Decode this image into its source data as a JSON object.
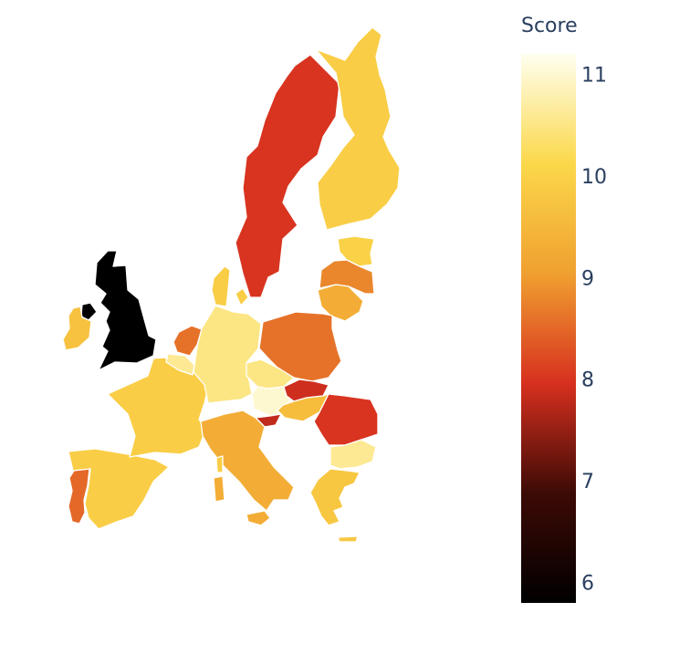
{
  "colorbar": {
    "title": "Score",
    "ticks": [
      6,
      7,
      8,
      9,
      10,
      11
    ],
    "range": [
      5.8,
      11.2
    ]
  },
  "colorscale": [
    [
      0.0,
      "#000000"
    ],
    [
      0.2,
      "#3d0a05"
    ],
    [
      0.4,
      "#d7301f"
    ],
    [
      0.6,
      "#f0a030"
    ],
    [
      0.8,
      "#fbd84a"
    ],
    [
      1.0,
      "#fffff0"
    ]
  ],
  "regions": [
    {
      "id": "united-kingdom",
      "value": 5.8
    },
    {
      "id": "northern-ireland",
      "value": 5.8
    },
    {
      "id": "ireland",
      "value": 9.7
    },
    {
      "id": "portugal",
      "value": 8.5
    },
    {
      "id": "spain",
      "value": 9.9
    },
    {
      "id": "france",
      "value": 9.9
    },
    {
      "id": "belgium",
      "value": 10.6
    },
    {
      "id": "netherlands",
      "value": 8.6
    },
    {
      "id": "germany",
      "value": 10.5
    },
    {
      "id": "denmark",
      "value": 9.9
    },
    {
      "id": "sweden",
      "value": 8.0
    },
    {
      "id": "finland",
      "value": 9.9
    },
    {
      "id": "estonia",
      "value": 10.0
    },
    {
      "id": "latvia",
      "value": 8.8
    },
    {
      "id": "lithuania",
      "value": 9.3
    },
    {
      "id": "poland",
      "value": 8.6
    },
    {
      "id": "czechia",
      "value": 10.5
    },
    {
      "id": "austria",
      "value": 11.0
    },
    {
      "id": "slovakia",
      "value": 7.9
    },
    {
      "id": "hungary",
      "value": 9.6
    },
    {
      "id": "slovenia",
      "value": 7.8
    },
    {
      "id": "italy",
      "value": 9.3
    },
    {
      "id": "romania",
      "value": 8.0
    },
    {
      "id": "bulgaria",
      "value": 10.6
    },
    {
      "id": "greece",
      "value": 9.8
    },
    {
      "id": "cyprus",
      "value": 9.9
    }
  ]
}
